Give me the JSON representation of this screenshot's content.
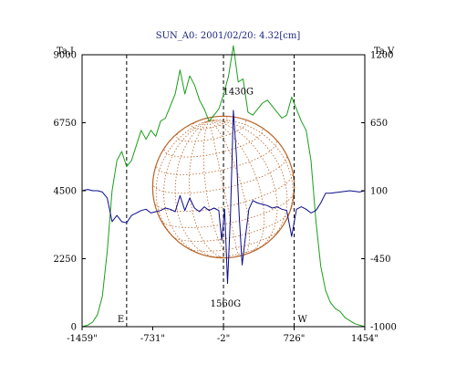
{
  "chart_data": {
    "type": "line",
    "title": "SUN_A0: 2001/02/20: 4.32[cm]",
    "left_axis_label": "Ta,I",
    "right_axis_label": "Ta,V",
    "x_ticks": [
      "-1459\"",
      "-731\"",
      "-2\"",
      "726\"",
      "1454\""
    ],
    "x_tick_values": [
      -1459,
      -731,
      -2,
      726,
      1454
    ],
    "xlim": [
      -1459,
      1454
    ],
    "ylim_left": [
      0,
      9000
    ],
    "ylim_right": [
      -1000,
      1200
    ],
    "left_ticks": [
      0,
      2250,
      4500,
      6750,
      9000
    ],
    "right_ticks": [
      -1000,
      -450,
      100,
      650,
      1200
    ],
    "vertical_markers": [
      -1000,
      -2,
      726
    ],
    "limb_labels": [
      "E",
      "W"
    ],
    "annotations": [
      {
        "text": "1430G",
        "x": 150,
        "y": 850
      },
      {
        "text": "1560G",
        "x": 20,
        "y": -720
      }
    ],
    "disk": {
      "center_x": -2,
      "radius": 730
    },
    "colors": {
      "intensity": "#1a9e1a",
      "polarization": "#0b0b8a",
      "disk": "#b8652a",
      "axes": "#000000"
    },
    "series": [
      {
        "axis": "left",
        "x": [
          -1459,
          -1400,
          -1350,
          -1300,
          -1250,
          -1200,
          -1150,
          -1100,
          -1050,
          -1000,
          -950,
          -900,
          -850,
          -800,
          -750,
          -700,
          -650,
          -600,
          -550,
          -500,
          -450,
          -400,
          -350,
          -300,
          -250,
          -200,
          -150,
          -100,
          -50,
          0,
          50,
          100,
          150,
          200,
          250,
          300,
          350,
          400,
          450,
          500,
          550,
          600,
          650,
          700,
          750,
          800,
          850,
          900,
          950,
          1000,
          1050,
          1100,
          1150,
          1200,
          1250,
          1300,
          1350,
          1400,
          1454
        ],
        "values": [
          0,
          50,
          150,
          400,
          1000,
          2500,
          4500,
          5500,
          5800,
          5300,
          5500,
          6000,
          6500,
          6200,
          6500,
          6300,
          6800,
          6900,
          7300,
          7700,
          8500,
          7700,
          8300,
          8000,
          7500,
          7200,
          6800,
          7000,
          7200,
          7700,
          8300,
          9300,
          8100,
          8200,
          7100,
          7000,
          7200,
          7400,
          7500,
          7300,
          7100,
          6900,
          7000,
          7600,
          7200,
          6800,
          6500,
          5500,
          3500,
          2000,
          1200,
          800,
          600,
          500,
          300,
          200,
          100,
          50,
          0
        ]
      },
      {
        "axis": "right",
        "x": [
          -1459,
          -1400,
          -1350,
          -1300,
          -1250,
          -1200,
          -1150,
          -1100,
          -1050,
          -1000,
          -950,
          -900,
          -850,
          -800,
          -750,
          -700,
          -650,
          -600,
          -550,
          -500,
          -450,
          -400,
          -350,
          -300,
          -250,
          -200,
          -150,
          -100,
          -50,
          -20,
          10,
          40,
          70,
          100,
          130,
          160,
          190,
          220,
          260,
          300,
          350,
          400,
          450,
          500,
          550,
          600,
          650,
          700,
          750,
          800,
          850,
          900,
          950,
          1000,
          1050,
          1100,
          1200,
          1300,
          1400,
          1454
        ],
        "values": [
          100,
          110,
          100,
          100,
          90,
          40,
          -150,
          -100,
          -150,
          -160,
          -100,
          -80,
          -60,
          -50,
          -80,
          -70,
          -60,
          -40,
          -50,
          -70,
          60,
          -60,
          40,
          -40,
          -70,
          -30,
          -60,
          -40,
          -60,
          -300,
          -50,
          -650,
          -100,
          750,
          400,
          -100,
          -500,
          -300,
          -50,
          20,
          0,
          -10,
          -20,
          -40,
          -30,
          -50,
          -60,
          -270,
          -50,
          -30,
          -50,
          -80,
          -60,
          0,
          80,
          80,
          90,
          100,
          90,
          100
        ]
      }
    ]
  }
}
